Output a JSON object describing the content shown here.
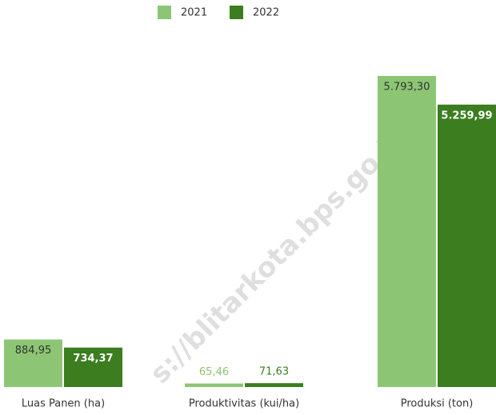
{
  "chart_data": {
    "type": "bar",
    "categories": [
      "Luas Panen (ha)",
      "Produktivitas (kui/ha)",
      "Produksi (ton)"
    ],
    "series": [
      {
        "name": "2021",
        "color": "#8cc674",
        "values": [
          884.95,
          65.46,
          5793.3
        ],
        "value_labels": [
          "884,95",
          "65,46",
          "5.793,30"
        ]
      },
      {
        "name": "2022",
        "color": "#3b7d1f",
        "values": [
          734.37,
          71.63,
          5259.99
        ],
        "value_labels": [
          "734,37",
          "71,63",
          "5.259,99"
        ]
      }
    ],
    "legend": "top",
    "watermark": "s://blitarkota.bps.go.id"
  }
}
